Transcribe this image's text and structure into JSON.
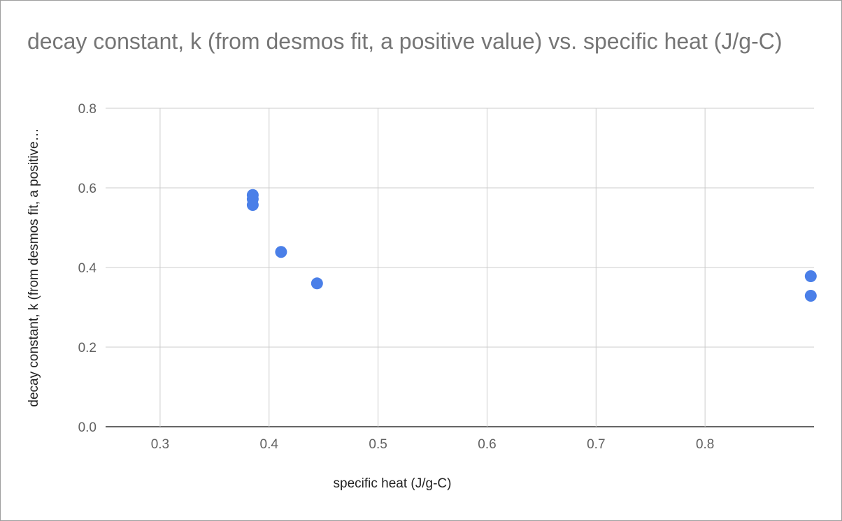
{
  "chart_data": {
    "type": "scatter",
    "title": "decay constant, k (from desmos fit, a positive value) vs. specific heat (J/g-C)",
    "xlabel": "specific heat (J/g-C)",
    "ylabel": "decay constant, k (from desmos fit, a positive…",
    "xlim": [
      0.25,
      0.9
    ],
    "ylim": [
      0,
      0.8
    ],
    "x_ticks": [
      "0.3",
      "0.4",
      "0.5",
      "0.6",
      "0.7",
      "0.8"
    ],
    "y_ticks": [
      "0.0",
      "0.2",
      "0.4",
      "0.6",
      "0.8"
    ],
    "grid": true,
    "legend": "none",
    "series": [
      {
        "color": "#4a7fe8",
        "points": [
          {
            "x": 0.385,
            "y": 0.582
          },
          {
            "x": 0.385,
            "y": 0.572
          },
          {
            "x": 0.385,
            "y": 0.557
          },
          {
            "x": 0.411,
            "y": 0.439
          },
          {
            "x": 0.444,
            "y": 0.36
          },
          {
            "x": 0.897,
            "y": 0.378
          },
          {
            "x": 0.897,
            "y": 0.329
          }
        ]
      }
    ]
  }
}
